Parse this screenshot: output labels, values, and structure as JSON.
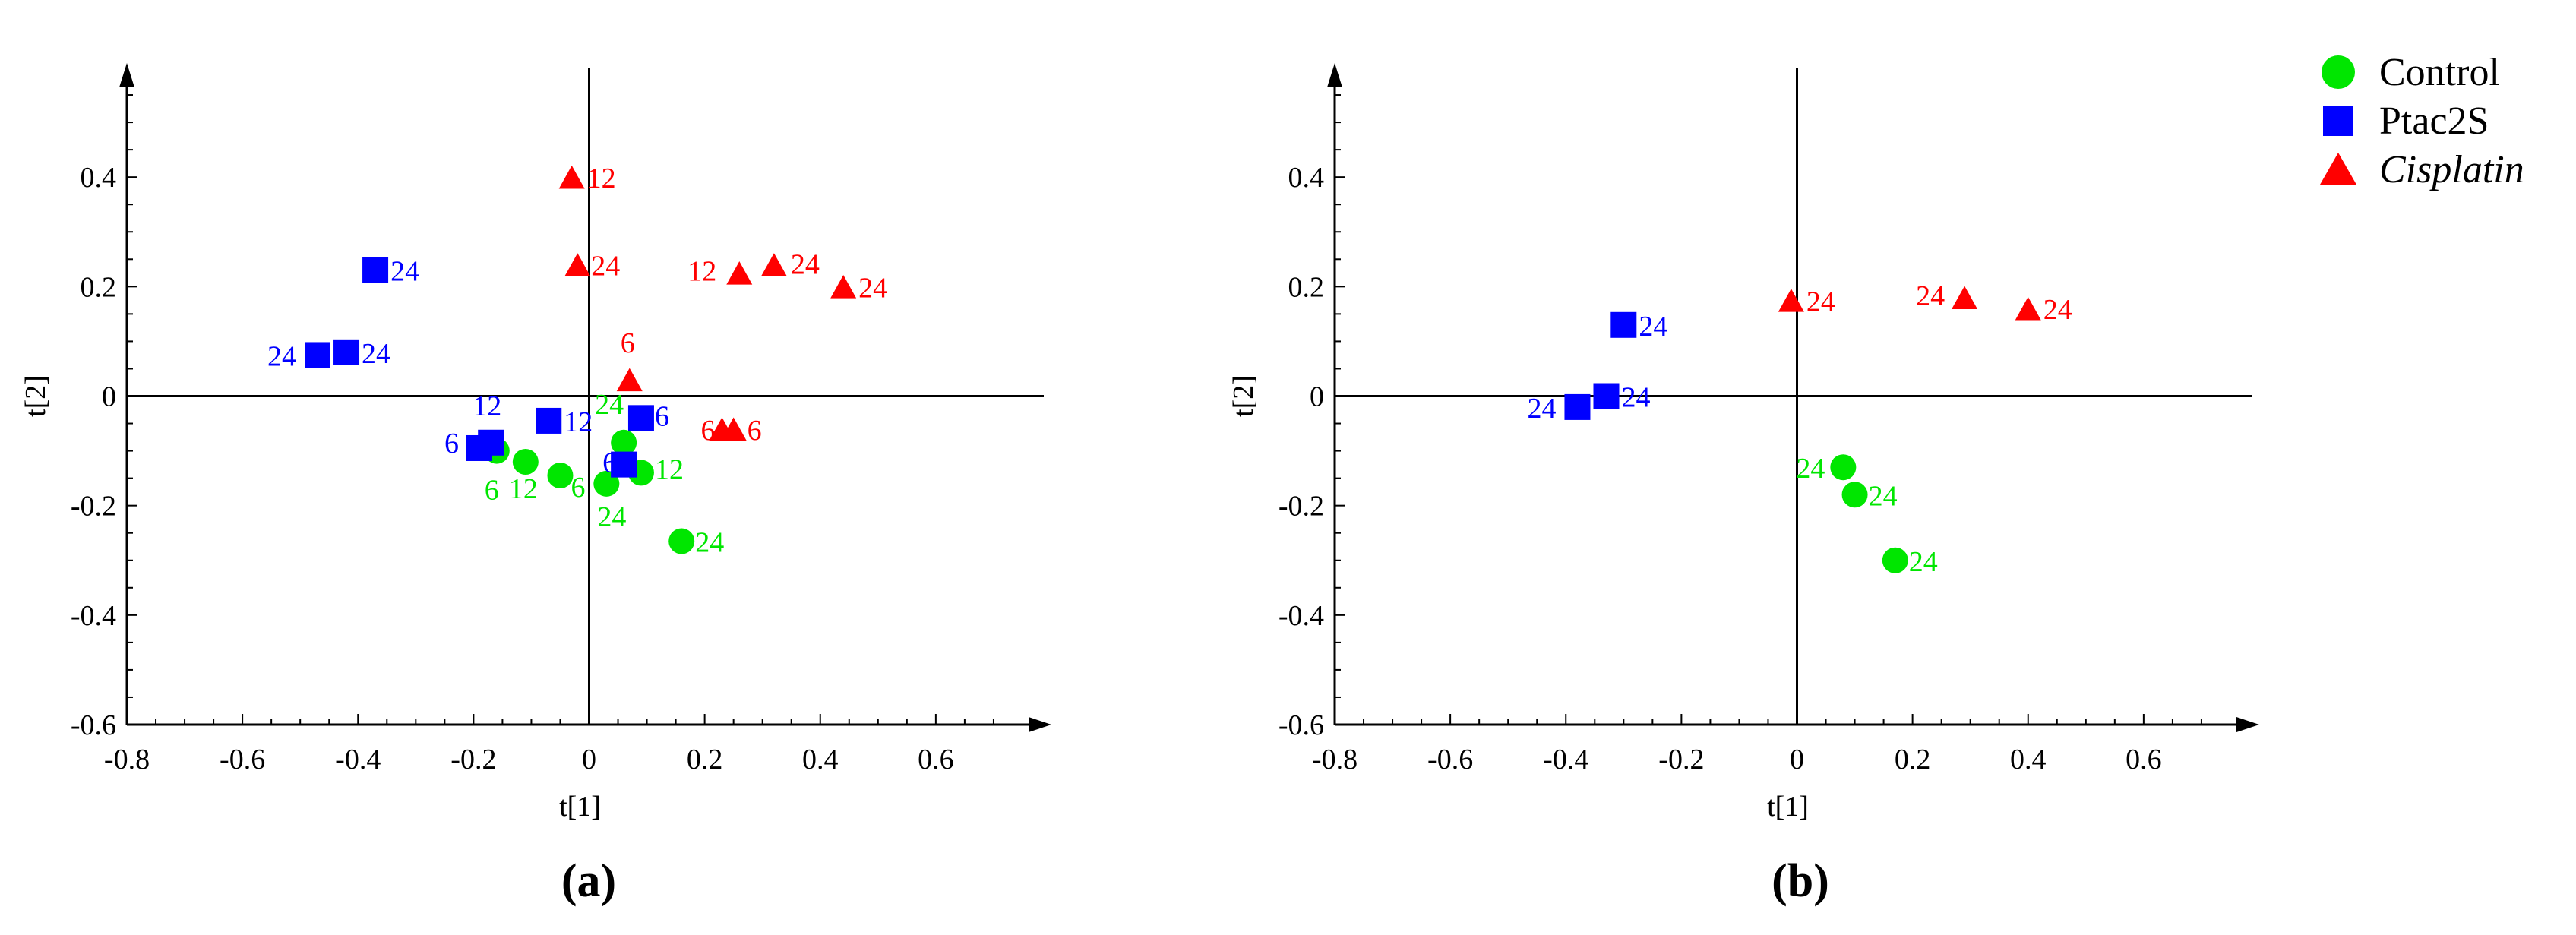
{
  "colors": {
    "Control": "#00e600",
    "Ptac2S": "#0000ff",
    "Cisplatin": "#ff0000"
  },
  "legend": {
    "placement": "top-right",
    "entries": [
      {
        "name": "Control",
        "marker": "circle",
        "italic": false
      },
      {
        "name": "Ptac2S",
        "marker": "square",
        "italic": false
      },
      {
        "name": "Cisplatin",
        "marker": "triangle",
        "italic": true
      }
    ]
  },
  "chart_data": [
    {
      "type": "scatter",
      "panel_label": "(a)",
      "xlabel": "t[1]",
      "ylabel": "t[2]",
      "xlim": [
        -0.8,
        0.8
      ],
      "ylim": [
        -0.6,
        0.6
      ],
      "xticks": [
        "-0.8",
        "-0.6",
        "-0.4",
        "-0.2",
        "0",
        "0.2",
        "0.4",
        "0.6"
      ],
      "yticks": [
        "-0.6",
        "-0.4",
        "-0.2",
        "0",
        "0.2",
        "0.4"
      ],
      "grid": false,
      "series": [
        {
          "name": "Control",
          "points": [
            {
              "x": 0.16,
              "y": -0.265,
              "label": "24"
            },
            {
              "x": 0.09,
              "y": -0.14,
              "label": "12"
            },
            {
              "x": 0.06,
              "y": -0.085,
              "label": "24"
            },
            {
              "x": 0.03,
              "y": -0.16,
              "label": "24"
            },
            {
              "x": -0.05,
              "y": -0.145,
              "label": "6"
            },
            {
              "x": -0.11,
              "y": -0.12,
              "label": "12"
            },
            {
              "x": -0.16,
              "y": -0.1,
              "label": "6"
            }
          ]
        },
        {
          "name": "Ptac2S",
          "points": [
            {
              "x": -0.37,
              "y": 0.23,
              "label": "24"
            },
            {
              "x": -0.47,
              "y": 0.075,
              "label": "24"
            },
            {
              "x": -0.42,
              "y": 0.08,
              "label": "24"
            },
            {
              "x": -0.19,
              "y": -0.095,
              "label": "6"
            },
            {
              "x": -0.17,
              "y": -0.085,
              "label": "12"
            },
            {
              "x": -0.07,
              "y": -0.045,
              "label": "12"
            },
            {
              "x": 0.09,
              "y": -0.04,
              "label": "6"
            },
            {
              "x": 0.06,
              "y": -0.125,
              "label": "6"
            }
          ]
        },
        {
          "name": "Cisplatin",
          "points": [
            {
              "x": -0.03,
              "y": 0.4,
              "label": "12"
            },
            {
              "x": -0.02,
              "y": 0.24,
              "label": "24"
            },
            {
              "x": 0.26,
              "y": 0.225,
              "label": "12"
            },
            {
              "x": 0.32,
              "y": 0.24,
              "label": "24"
            },
            {
              "x": 0.44,
              "y": 0.2,
              "label": "24"
            },
            {
              "x": 0.07,
              "y": 0.03,
              "label": "6"
            },
            {
              "x": 0.23,
              "y": -0.06,
              "label": "6"
            },
            {
              "x": 0.25,
              "y": -0.06,
              "label": "6"
            }
          ]
        }
      ]
    },
    {
      "type": "scatter",
      "panel_label": "(b)",
      "xlabel": "t[1]",
      "ylabel": "t[2]",
      "xlim": [
        -0.8,
        0.8
      ],
      "ylim": [
        -0.6,
        0.6
      ],
      "xticks": [
        "-0.8",
        "-0.6",
        "-0.4",
        "-0.2",
        "0",
        "0.2",
        "0.4",
        "0.6"
      ],
      "yticks": [
        "-0.6",
        "-0.4",
        "-0.2",
        "0",
        "0.2",
        "0.4"
      ],
      "grid": false,
      "series": [
        {
          "name": "Control",
          "points": [
            {
              "x": 0.08,
              "y": -0.13,
              "label": "24"
            },
            {
              "x": 0.1,
              "y": -0.18,
              "label": "24"
            },
            {
              "x": 0.17,
              "y": -0.3,
              "label": "24"
            }
          ]
        },
        {
          "name": "Ptac2S",
          "points": [
            {
              "x": -0.3,
              "y": 0.13,
              "label": "24"
            },
            {
              "x": -0.38,
              "y": -0.02,
              "label": "24"
            },
            {
              "x": -0.33,
              "y": 0.0,
              "label": "24"
            }
          ]
        },
        {
          "name": "Cisplatin",
          "points": [
            {
              "x": -0.01,
              "y": 0.175,
              "label": "24"
            },
            {
              "x": 0.29,
              "y": 0.18,
              "label": "24"
            },
            {
              "x": 0.4,
              "y": 0.16,
              "label": "24"
            }
          ]
        }
      ]
    }
  ]
}
